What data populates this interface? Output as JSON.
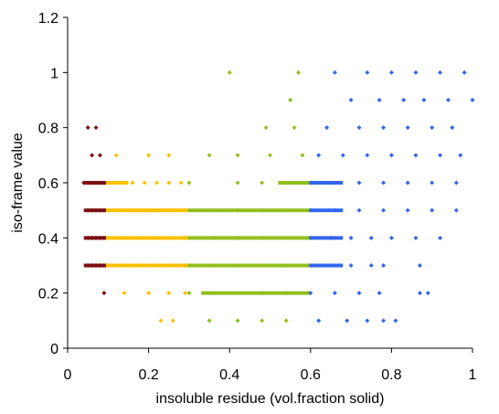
{
  "chart_data": {
    "type": "scatter",
    "title": "",
    "xlabel": "insoluble residue (vol.fraction solid)",
    "ylabel": "iso-frame value",
    "xlim": [
      0,
      1
    ],
    "ylim": [
      0,
      1.2
    ],
    "x_ticks": [
      "0",
      "0.2",
      "0.4",
      "0.6",
      "0.8",
      "1"
    ],
    "y_ticks": [
      "0",
      "0.2",
      "0.4",
      "0.6",
      "0.8",
      "1",
      "1.2"
    ],
    "grid": false,
    "legend": "none",
    "series": [
      {
        "color": "#7b1010",
        "points": [
          [
            0.05,
            0.8
          ],
          [
            0.07,
            0.8
          ],
          [
            0.06,
            0.7
          ],
          [
            0.08,
            0.7
          ],
          [
            0.04,
            0.6
          ],
          [
            0.05,
            0.6
          ],
          [
            0.06,
            0.6
          ],
          [
            0.07,
            0.6
          ],
          [
            0.08,
            0.6
          ],
          [
            0.09,
            0.6
          ],
          [
            0.05,
            0.5
          ],
          [
            0.06,
            0.5
          ],
          [
            0.07,
            0.5
          ],
          [
            0.08,
            0.5
          ],
          [
            0.09,
            0.5
          ],
          [
            0.05,
            0.4
          ],
          [
            0.06,
            0.4
          ],
          [
            0.07,
            0.4
          ],
          [
            0.08,
            0.4
          ],
          [
            0.09,
            0.4
          ],
          [
            0.05,
            0.3
          ],
          [
            0.06,
            0.3
          ],
          [
            0.07,
            0.3
          ],
          [
            0.08,
            0.3
          ],
          [
            0.09,
            0.3
          ],
          [
            0.09,
            0.2
          ]
        ]
      },
      {
        "color": "#ffc000",
        "points": [
          [
            0.12,
            0.7
          ],
          [
            0.2,
            0.7
          ],
          [
            0.25,
            0.7
          ],
          [
            0.1,
            0.6
          ],
          [
            0.13,
            0.6
          ],
          [
            0.16,
            0.6
          ],
          [
            0.19,
            0.6
          ],
          [
            0.22,
            0.6
          ],
          [
            0.25,
            0.6
          ],
          [
            0.28,
            0.6
          ],
          [
            0.1,
            0.5
          ],
          [
            0.14,
            0.5
          ],
          [
            0.18,
            0.5
          ],
          [
            0.22,
            0.5
          ],
          [
            0.26,
            0.5
          ],
          [
            0.29,
            0.5
          ],
          [
            0.1,
            0.4
          ],
          [
            0.14,
            0.4
          ],
          [
            0.18,
            0.4
          ],
          [
            0.22,
            0.4
          ],
          [
            0.26,
            0.4
          ],
          [
            0.29,
            0.4
          ],
          [
            0.1,
            0.3
          ],
          [
            0.14,
            0.3
          ],
          [
            0.18,
            0.3
          ],
          [
            0.22,
            0.3
          ],
          [
            0.26,
            0.3
          ],
          [
            0.29,
            0.3
          ],
          [
            0.14,
            0.2
          ],
          [
            0.2,
            0.2
          ],
          [
            0.25,
            0.2
          ],
          [
            0.29,
            0.2
          ],
          [
            0.23,
            0.1
          ],
          [
            0.26,
            0.1
          ]
        ]
      },
      {
        "color": "#92c01f",
        "points": [
          [
            0.4,
            1.0
          ],
          [
            0.57,
            1.0
          ],
          [
            0.55,
            0.9
          ],
          [
            0.49,
            0.8
          ],
          [
            0.56,
            0.8
          ],
          [
            0.35,
            0.7
          ],
          [
            0.42,
            0.7
          ],
          [
            0.5,
            0.7
          ],
          [
            0.58,
            0.7
          ],
          [
            0.3,
            0.6
          ],
          [
            0.42,
            0.6
          ],
          [
            0.48,
            0.6
          ],
          [
            0.54,
            0.6
          ],
          [
            0.59,
            0.6
          ],
          [
            0.3,
            0.5
          ],
          [
            0.36,
            0.5
          ],
          [
            0.42,
            0.5
          ],
          [
            0.48,
            0.5
          ],
          [
            0.54,
            0.5
          ],
          [
            0.59,
            0.5
          ],
          [
            0.3,
            0.4
          ],
          [
            0.36,
            0.4
          ],
          [
            0.42,
            0.4
          ],
          [
            0.48,
            0.4
          ],
          [
            0.54,
            0.4
          ],
          [
            0.59,
            0.4
          ],
          [
            0.3,
            0.3
          ],
          [
            0.36,
            0.3
          ],
          [
            0.42,
            0.3
          ],
          [
            0.48,
            0.3
          ],
          [
            0.54,
            0.3
          ],
          [
            0.59,
            0.3
          ],
          [
            0.3,
            0.2
          ],
          [
            0.36,
            0.2
          ],
          [
            0.42,
            0.2
          ],
          [
            0.48,
            0.2
          ],
          [
            0.54,
            0.2
          ],
          [
            0.59,
            0.2
          ],
          [
            0.35,
            0.1
          ],
          [
            0.42,
            0.1
          ],
          [
            0.48,
            0.1
          ],
          [
            0.54,
            0.1
          ]
        ]
      },
      {
        "color": "#3366ee",
        "points": [
          [
            0.66,
            1.0
          ],
          [
            0.74,
            1.0
          ],
          [
            0.8,
            1.0
          ],
          [
            0.86,
            1.0
          ],
          [
            0.92,
            1.0
          ],
          [
            0.98,
            1.0
          ],
          [
            0.7,
            0.9
          ],
          [
            0.77,
            0.9
          ],
          [
            0.83,
            0.9
          ],
          [
            0.88,
            0.9
          ],
          [
            0.94,
            0.9
          ],
          [
            1.0,
            0.9
          ],
          [
            0.64,
            0.8
          ],
          [
            0.72,
            0.8
          ],
          [
            0.78,
            0.8
          ],
          [
            0.84,
            0.8
          ],
          [
            0.9,
            0.8
          ],
          [
            0.95,
            0.8
          ],
          [
            0.62,
            0.7
          ],
          [
            0.68,
            0.7
          ],
          [
            0.74,
            0.7
          ],
          [
            0.8,
            0.7
          ],
          [
            0.86,
            0.7
          ],
          [
            0.92,
            0.7
          ],
          [
            0.97,
            0.7
          ],
          [
            0.6,
            0.6
          ],
          [
            0.66,
            0.6
          ],
          [
            0.72,
            0.6
          ],
          [
            0.78,
            0.6
          ],
          [
            0.84,
            0.6
          ],
          [
            0.9,
            0.6
          ],
          [
            0.96,
            0.6
          ],
          [
            0.6,
            0.5
          ],
          [
            0.66,
            0.5
          ],
          [
            0.72,
            0.5
          ],
          [
            0.78,
            0.5
          ],
          [
            0.84,
            0.5
          ],
          [
            0.9,
            0.5
          ],
          [
            0.96,
            0.5
          ],
          [
            0.6,
            0.4
          ],
          [
            0.65,
            0.4
          ],
          [
            0.7,
            0.4
          ],
          [
            0.75,
            0.4
          ],
          [
            0.8,
            0.4
          ],
          [
            0.86,
            0.4
          ],
          [
            0.92,
            0.4
          ],
          [
            0.6,
            0.3
          ],
          [
            0.65,
            0.3
          ],
          [
            0.7,
            0.3
          ],
          [
            0.75,
            0.3
          ],
          [
            0.78,
            0.3
          ],
          [
            0.87,
            0.3
          ],
          [
            0.6,
            0.2
          ],
          [
            0.66,
            0.2
          ],
          [
            0.72,
            0.2
          ],
          [
            0.77,
            0.2
          ],
          [
            0.87,
            0.2
          ],
          [
            0.89,
            0.2
          ],
          [
            0.62,
            0.1
          ],
          [
            0.69,
            0.1
          ],
          [
            0.74,
            0.1
          ],
          [
            0.78,
            0.1
          ],
          [
            0.81,
            0.1
          ]
        ]
      }
    ],
    "bands": [
      {
        "color": "#7b1010",
        "x0": 0.04,
        "x1": 0.095,
        "ys": [
          0.3,
          0.4,
          0.5,
          0.6
        ]
      },
      {
        "color": "#ffc000",
        "x0": 0.095,
        "x1": 0.3,
        "ys": [
          0.3,
          0.4,
          0.5
        ]
      },
      {
        "color": "#ffc000",
        "x0": 0.095,
        "x1": 0.15,
        "ys": [
          0.6
        ]
      },
      {
        "color": "#92c01f",
        "x0": 0.3,
        "x1": 0.6,
        "ys": [
          0.3,
          0.4,
          0.5
        ]
      },
      {
        "color": "#92c01f",
        "x0": 0.33,
        "x1": 0.6,
        "ys": [
          0.2
        ]
      },
      {
        "color": "#92c01f",
        "x0": 0.52,
        "x1": 0.6,
        "ys": [
          0.6
        ]
      },
      {
        "color": "#3366ee",
        "x0": 0.6,
        "x1": 0.68,
        "ys": [
          0.3,
          0.4,
          0.5,
          0.6
        ]
      }
    ]
  }
}
